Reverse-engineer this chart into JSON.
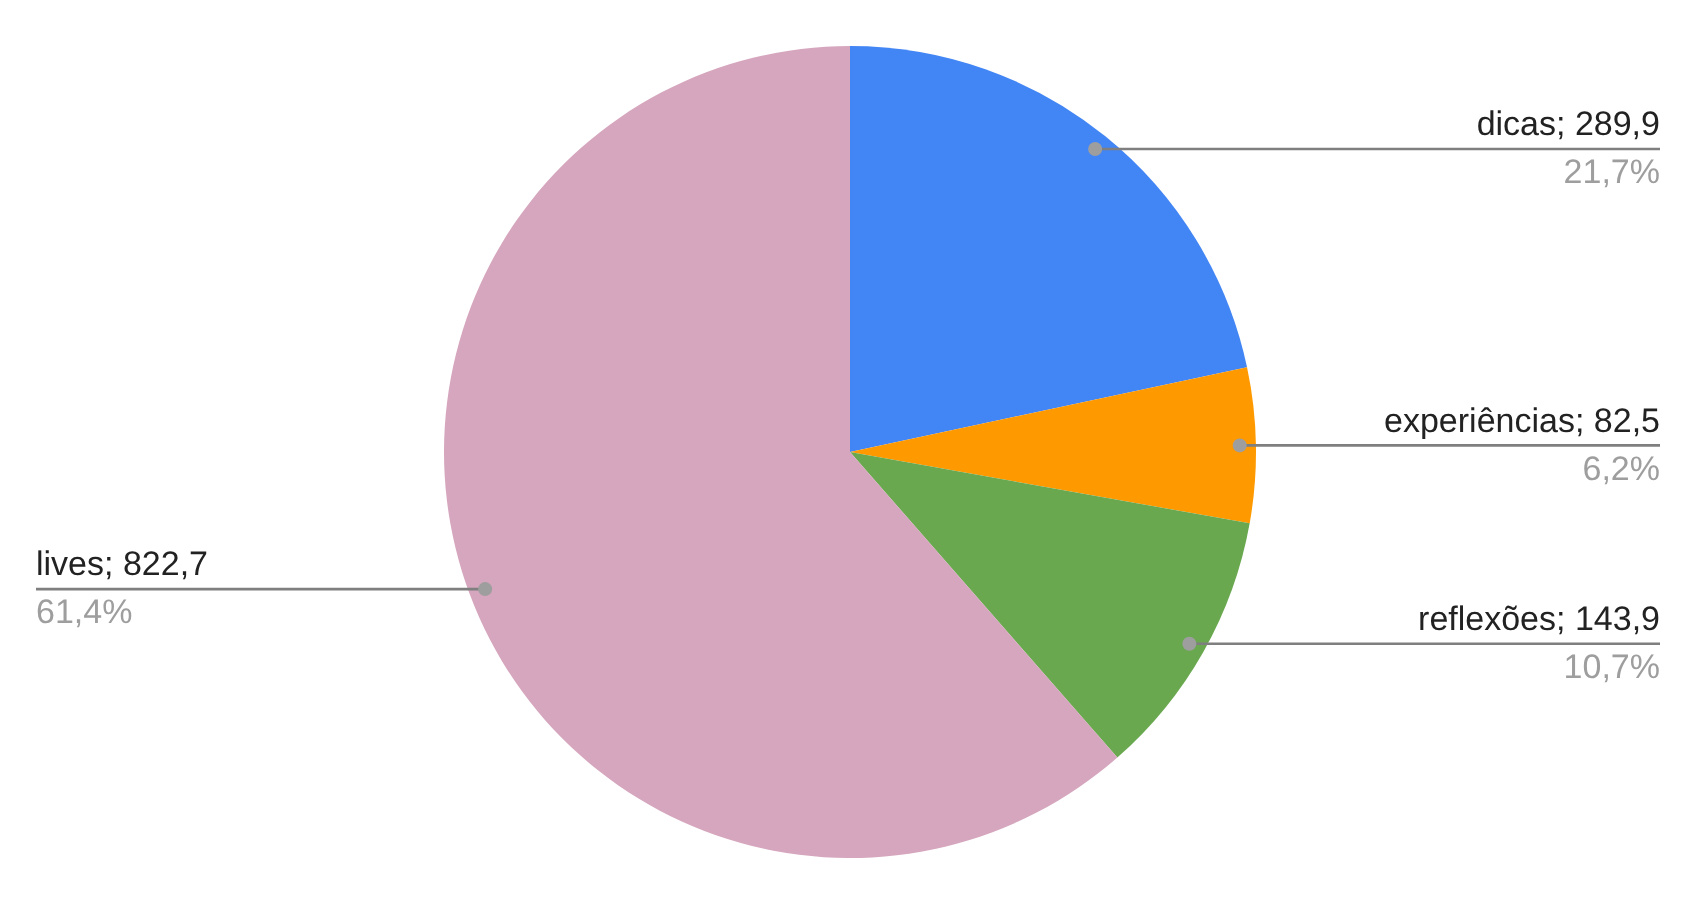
{
  "chart_data": {
    "type": "pie",
    "categories": [
      "dicas",
      "experiências",
      "reflexões",
      "lives"
    ],
    "values": [
      289.9,
      82.5,
      143.9,
      822.7
    ],
    "colors": [
      "#4285f4",
      "#ff9900",
      "#6aa84f",
      "#d5a6bd"
    ],
    "data_labels": true,
    "value_labels": [
      "289,9",
      "82,5",
      "143,9",
      "822,7"
    ],
    "annotations": [
      "21,7%",
      "6,2%",
      "10,7%",
      "61,4%"
    ],
    "legend": false
  }
}
